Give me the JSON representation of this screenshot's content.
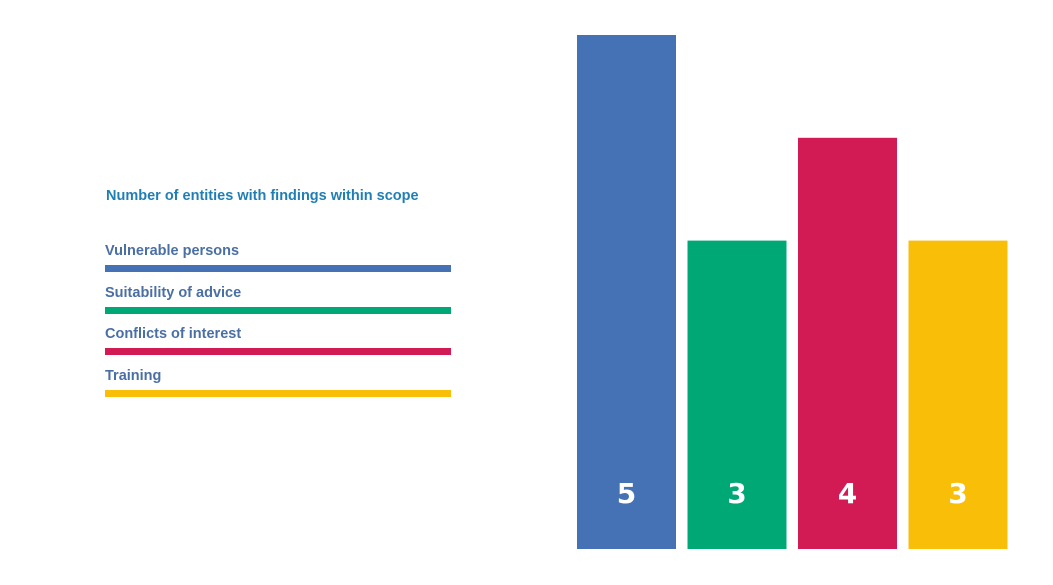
{
  "chart_data": {
    "type": "bar",
    "title": "Number of entities with findings within scope",
    "xlabel": "",
    "ylabel": "",
    "ylim": [
      0,
      5
    ],
    "grid": false,
    "legend_placement": "left",
    "categories": [
      "Vulnerable persons",
      "Suitability of advice",
      "Conflicts of interest",
      "Training"
    ],
    "values": [
      5,
      3,
      4,
      3
    ],
    "data_labels": [
      "5",
      "3",
      "4",
      "3"
    ],
    "colors": [
      "#4472B4",
      "#00A875",
      "#D21B55",
      "#F8BE08"
    ]
  }
}
